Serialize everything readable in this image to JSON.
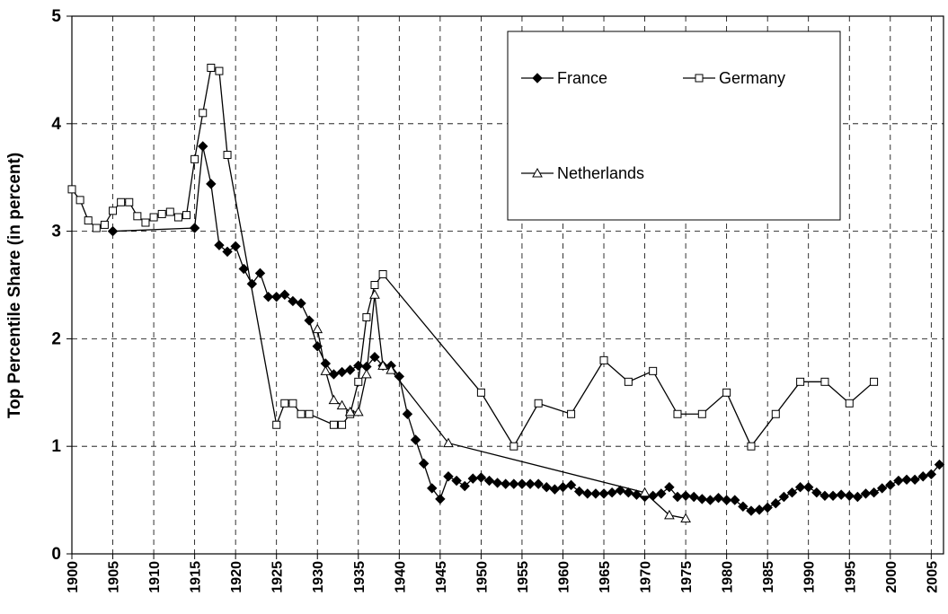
{
  "chart_data": {
    "type": "line",
    "y_label": "Top Percentile Share (in percent)",
    "xlim": [
      1900,
      2006.5
    ],
    "ylim": [
      0,
      5
    ],
    "xticks": [
      1900,
      1905,
      1910,
      1915,
      1920,
      1925,
      1930,
      1935,
      1940,
      1945,
      1950,
      1955,
      1960,
      1965,
      1970,
      1975,
      1980,
      1985,
      1990,
      1995,
      2000,
      2005
    ],
    "yticks": [
      0,
      1,
      2,
      3,
      4,
      5
    ],
    "grid": true,
    "legend": "upper right",
    "series": [
      {
        "name": "France",
        "color": "#000000",
        "marker": "diamond",
        "x": [
          1905,
          1915,
          1916,
          1917,
          1918,
          1919,
          1920,
          1921,
          1922,
          1923,
          1924,
          1925,
          1926,
          1927,
          1928,
          1929,
          1930,
          1931,
          1932,
          1933,
          1934,
          1935,
          1936,
          1937,
          1938,
          1939,
          1940,
          1941,
          1942,
          1943,
          1944,
          1945,
          1946,
          1947,
          1948,
          1949,
          1950,
          1951,
          1952,
          1953,
          1954,
          1955,
          1956,
          1957,
          1958,
          1959,
          1960,
          1961,
          1962,
          1963,
          1964,
          1965,
          1966,
          1967,
          1968,
          1969,
          1970,
          1971,
          1972,
          1973,
          1974,
          1975,
          1976,
          1977,
          1978,
          1979,
          1980,
          1981,
          1982,
          1983,
          1984,
          1985,
          1986,
          1987,
          1988,
          1989,
          1990,
          1991,
          1992,
          1993,
          1994,
          1995,
          1996,
          1997,
          1998,
          1999,
          2000,
          2001,
          2002,
          2003,
          2004,
          2005,
          2006
        ],
        "values": [
          3.0,
          3.03,
          3.79,
          3.44,
          2.87,
          2.81,
          2.86,
          2.65,
          2.51,
          2.61,
          2.39,
          2.39,
          2.41,
          2.35,
          2.33,
          2.17,
          1.93,
          1.77,
          1.67,
          1.69,
          1.71,
          1.75,
          1.74,
          1.83,
          1.75,
          1.75,
          1.65,
          1.3,
          1.06,
          0.84,
          0.61,
          0.51,
          0.72,
          0.68,
          0.63,
          0.7,
          0.71,
          0.68,
          0.66,
          0.65,
          0.65,
          0.65,
          0.65,
          0.65,
          0.62,
          0.6,
          0.62,
          0.64,
          0.58,
          0.56,
          0.56,
          0.56,
          0.57,
          0.59,
          0.57,
          0.55,
          0.53,
          0.54,
          0.56,
          0.62,
          0.53,
          0.54,
          0.53,
          0.51,
          0.5,
          0.52,
          0.5,
          0.5,
          0.44,
          0.4,
          0.41,
          0.43,
          0.47,
          0.53,
          0.57,
          0.62,
          0.62,
          0.57,
          0.54,
          0.54,
          0.55,
          0.54,
          0.53,
          0.56,
          0.57,
          0.61,
          0.64,
          0.68,
          0.69,
          0.69,
          0.72,
          0.74,
          0.83
        ]
      },
      {
        "name": "Germany",
        "color": "#000000",
        "marker": "square",
        "x": [
          1900,
          1901,
          1902,
          1903,
          1904,
          1905,
          1906,
          1907,
          1908,
          1909,
          1910,
          1911,
          1912,
          1913,
          1914,
          1915,
          1916,
          1917,
          1918,
          1919,
          1925,
          1926,
          1927,
          1928,
          1929,
          1932,
          1933,
          1934,
          1935,
          1936,
          1937,
          1938,
          1950,
          1954,
          1957,
          1961,
          1965,
          1968,
          1971,
          1974,
          1977,
          1980,
          1983,
          1986,
          1989,
          1992,
          1995,
          1998
        ],
        "values": [
          3.39,
          3.29,
          3.1,
          3.03,
          3.06,
          3.19,
          3.27,
          3.27,
          3.14,
          3.08,
          3.13,
          3.16,
          3.18,
          3.13,
          3.15,
          3.67,
          4.1,
          4.52,
          4.49,
          3.71,
          1.2,
          1.4,
          1.4,
          1.3,
          1.3,
          1.2,
          1.2,
          1.3,
          1.6,
          2.2,
          2.5,
          2.6,
          1.5,
          1.0,
          1.4,
          1.3,
          1.8,
          1.6,
          1.7,
          1.3,
          1.3,
          1.5,
          1.0,
          1.3,
          1.6,
          1.6,
          1.4,
          1.6
        ]
      },
      {
        "name": "Netherlands",
        "color": "#000000",
        "marker": "triangle",
        "x": [
          1930,
          1931,
          1932,
          1933,
          1934,
          1935,
          1936,
          1937,
          1938,
          1939,
          1946,
          1970,
          1973,
          1975
        ],
        "values": [
          2.09,
          1.7,
          1.43,
          1.38,
          1.32,
          1.32,
          1.67,
          2.41,
          1.75,
          1.71,
          1.03,
          0.57,
          0.36,
          0.33
        ]
      }
    ]
  }
}
